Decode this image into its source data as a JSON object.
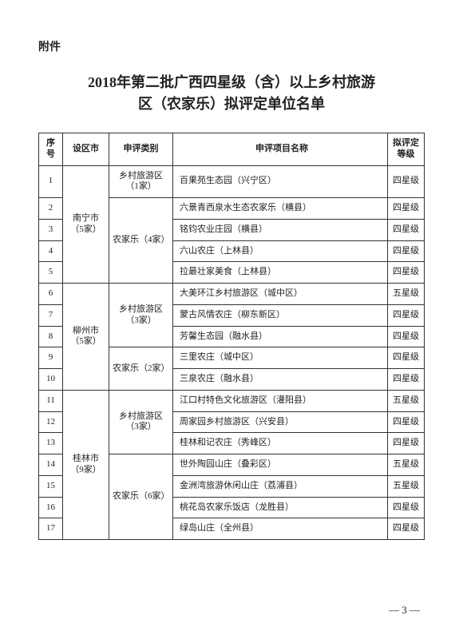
{
  "attachment_label": "附件",
  "title_line1": "2018年第二批广西四星级（含）以上乡村旅游",
  "title_line2": "区（农家乐）拟评定单位名单",
  "headers": {
    "seq": "序号",
    "city": "设区市",
    "category": "申评类别",
    "project": "申评项目名称",
    "grade": "拟评定等级"
  },
  "groups": [
    {
      "city": "南宁市（5家）",
      "cats": [
        {
          "cat": "乡村旅游区（1家）",
          "rows": [
            {
              "seq": "1",
              "name": "百果苑生态园（兴宁区）",
              "grade": "四星级"
            }
          ]
        },
        {
          "cat": "农家乐（4家）",
          "rows": [
            {
              "seq": "2",
              "name": "六景青西泉水生态农家乐（横县）",
              "grade": "四星级"
            },
            {
              "seq": "3",
              "name": "铭钧农业庄园（横县）",
              "grade": "四星级"
            },
            {
              "seq": "4",
              "name": "六山农庄（上林县）",
              "grade": "四星级"
            },
            {
              "seq": "5",
              "name": "拉最壮家美食（上林县）",
              "grade": "四星级"
            }
          ]
        }
      ]
    },
    {
      "city": "柳州市（5家）",
      "cats": [
        {
          "cat": "乡村旅游区（3家）",
          "rows": [
            {
              "seq": "6",
              "name": "大美环江乡村旅游区（城中区）",
              "grade": "五星级"
            },
            {
              "seq": "7",
              "name": "蒙古风情农庄（柳东新区）",
              "grade": "四星级"
            },
            {
              "seq": "8",
              "name": "芳馨生态园（融水县）",
              "grade": "四星级"
            }
          ]
        },
        {
          "cat": "农家乐（2家）",
          "rows": [
            {
              "seq": "9",
              "name": "三里农庄（城中区）",
              "grade": "四星级"
            },
            {
              "seq": "10",
              "name": "三泉农庄（融水县）",
              "grade": "四星级"
            }
          ]
        }
      ]
    },
    {
      "city": "桂林市（9家）",
      "cats": [
        {
          "cat": "乡村旅游区（3家）",
          "rows": [
            {
              "seq": "11",
              "name": "江口村特色文化旅游区（灌阳县）",
              "grade": "五星级"
            },
            {
              "seq": "12",
              "name": "周家园乡村旅游区（兴安县）",
              "grade": "四星级"
            },
            {
              "seq": "13",
              "name": "桂林和记农庄（秀峰区）",
              "grade": "四星级"
            }
          ]
        },
        {
          "cat": "农家乐（6家）",
          "rows": [
            {
              "seq": "14",
              "name": "世外陶园山庄（叠彩区）",
              "grade": "五星级"
            },
            {
              "seq": "15",
              "name": "金洲湾旅游休闲山庄（荔浦县）",
              "grade": "五星级"
            },
            {
              "seq": "16",
              "name": "桃花岛农家乐饭店（龙胜县）",
              "grade": "四星级"
            },
            {
              "seq": "17",
              "name": "绿岛山庄（全州县）",
              "grade": "四星级"
            }
          ]
        }
      ]
    }
  ],
  "page_number": "— 3 —"
}
